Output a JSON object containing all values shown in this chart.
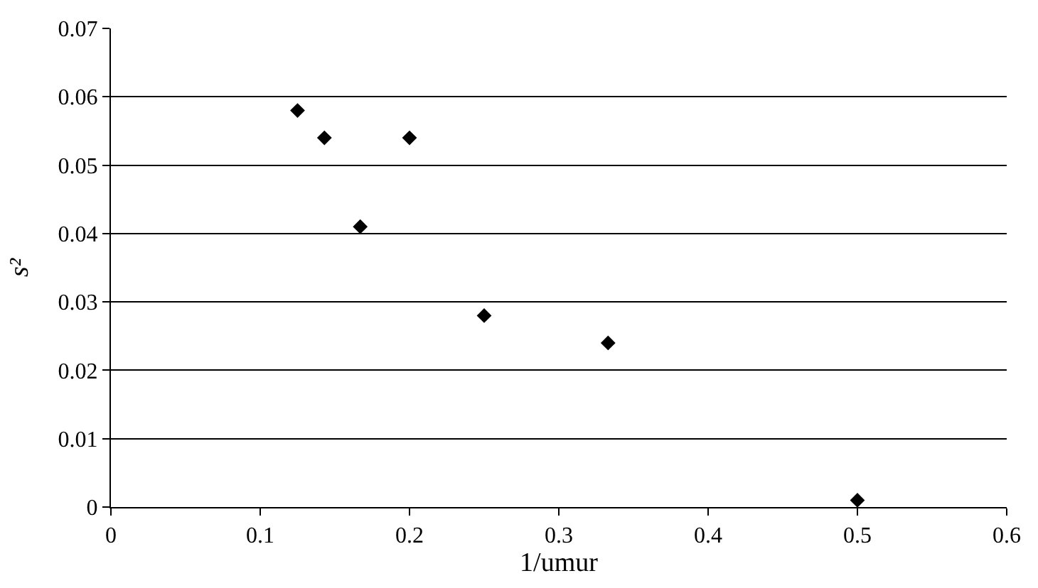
{
  "chart_data": {
    "type": "scatter",
    "xlabel": "1/umur",
    "ylabel": "s²",
    "x": [
      0.125,
      0.143,
      0.167,
      0.2,
      0.25,
      0.333,
      0.5
    ],
    "series": [
      {
        "color": "#000000",
        "values": [
          0.058,
          0.054,
          0.041,
          0.054,
          0.028,
          0.024,
          0.001
        ]
      }
    ],
    "xlim": [
      0,
      0.6
    ],
    "xticks": [
      0,
      0.1,
      0.2,
      0.3,
      0.4,
      0.5,
      0.6
    ],
    "ylim": [
      0,
      0.07
    ],
    "yticks": [
      0,
      0.01,
      0.02,
      0.03,
      0.04,
      0.05,
      0.06,
      0.07
    ],
    "grid": "y",
    "marker": "diamond",
    "legend": false
  }
}
